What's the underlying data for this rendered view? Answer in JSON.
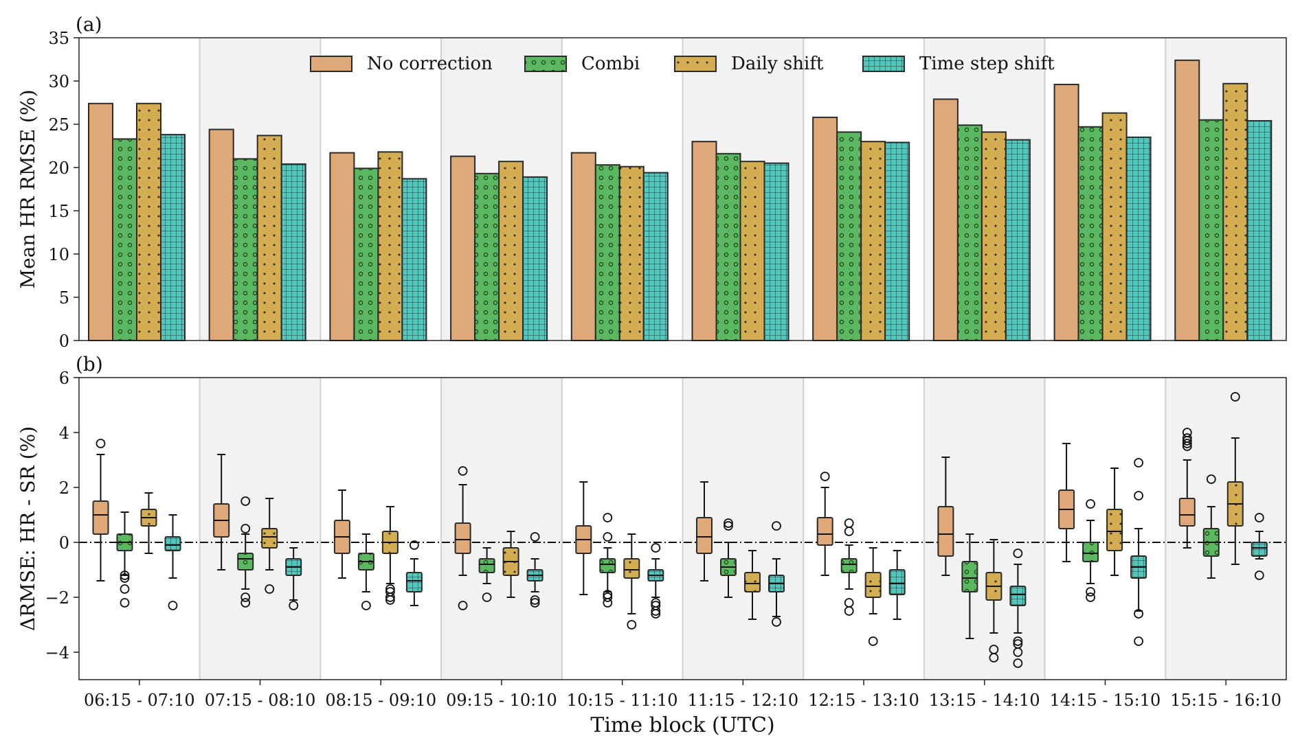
{
  "chart_data": [
    {
      "panel_label": "(a)",
      "type": "bar",
      "ylabel": "Mean HR RMSE (%)",
      "ylim": [
        0,
        35
      ],
      "yticks": [
        0,
        5,
        10,
        15,
        20,
        25,
        30,
        35
      ],
      "categories": [
        "06:15 - 07:10",
        "07:15 - 08:10",
        "08:15 - 09:10",
        "09:15 - 10:10",
        "10:15 - 11:10",
        "11:15 - 12:10",
        "12:15 - 13:10",
        "13:15 - 14:10",
        "14:15 - 15:10",
        "15:15 - 16:10"
      ],
      "legend_position": "top",
      "series": [
        {
          "name": "No correction",
          "color": "#dea878",
          "pattern": "none",
          "values": [
            27.4,
            24.4,
            21.7,
            21.3,
            21.7,
            23.0,
            25.8,
            27.9,
            29.6,
            32.4
          ]
        },
        {
          "name": "Combi",
          "color": "#5cb860",
          "pattern": "circles",
          "values": [
            23.3,
            21.0,
            19.9,
            19.3,
            20.3,
            21.6,
            24.1,
            24.9,
            24.7,
            25.5
          ]
        },
        {
          "name": "Daily shift",
          "color": "#d4ad52",
          "pattern": "dots",
          "values": [
            27.4,
            23.7,
            21.8,
            20.7,
            20.1,
            20.7,
            23.0,
            24.1,
            26.3,
            29.7
          ]
        },
        {
          "name": "Time step shift",
          "color": "#4ec9be",
          "pattern": "grid",
          "values": [
            23.8,
            20.4,
            18.7,
            18.9,
            19.4,
            20.5,
            22.9,
            23.2,
            23.5,
            25.4
          ]
        }
      ]
    },
    {
      "panel_label": "(b)",
      "type": "box",
      "ylabel": "ΔRMSE: HR - SR (%)",
      "xlabel": "Time block (UTC)",
      "ylim": [
        -5,
        6
      ],
      "yticks": [
        -4,
        -2,
        0,
        2,
        4,
        6
      ],
      "reference_line": 0,
      "categories": [
        "06:15 - 07:10",
        "07:15 - 08:10",
        "08:15 - 09:10",
        "09:15 - 10:10",
        "10:15 - 11:10",
        "11:15 - 12:10",
        "12:15 - 13:10",
        "13:15 - 14:10",
        "14:15 - 15:10",
        "15:15 - 16:10"
      ],
      "series": [
        {
          "name": "No correction",
          "color": "#dea878",
          "pattern": "none",
          "boxes": [
            {
              "lo": -1.4,
              "q1": 0.3,
              "med": 1.0,
              "q3": 1.5,
              "hi": 3.2,
              "out": [
                3.6
              ]
            },
            {
              "lo": -1.0,
              "q1": 0.2,
              "med": 0.8,
              "q3": 1.4,
              "hi": 3.2,
              "out": []
            },
            {
              "lo": -1.3,
              "q1": -0.4,
              "med": 0.2,
              "q3": 0.8,
              "hi": 1.9,
              "out": []
            },
            {
              "lo": -1.2,
              "q1": -0.4,
              "med": 0.1,
              "q3": 0.7,
              "hi": 2.1,
              "out": [
                2.6,
                -2.3
              ]
            },
            {
              "lo": -1.9,
              "q1": -0.4,
              "med": 0.1,
              "q3": 0.6,
              "hi": 2.2,
              "out": []
            },
            {
              "lo": -1.4,
              "q1": -0.4,
              "med": 0.2,
              "q3": 0.9,
              "hi": 2.2,
              "out": []
            },
            {
              "lo": -1.2,
              "q1": -0.1,
              "med": 0.3,
              "q3": 0.9,
              "hi": 2.0,
              "out": [
                2.4
              ]
            },
            {
              "lo": -1.2,
              "q1": -0.5,
              "med": 0.3,
              "q3": 1.3,
              "hi": 3.1,
              "out": []
            },
            {
              "lo": -0.7,
              "q1": 0.5,
              "med": 1.2,
              "q3": 1.9,
              "hi": 3.6,
              "out": []
            },
            {
              "lo": -0.2,
              "q1": 0.6,
              "med": 1.0,
              "q3": 1.6,
              "hi": 3.0,
              "out": [
                3.5,
                3.6,
                3.7,
                3.8,
                4.0
              ]
            }
          ]
        },
        {
          "name": "Combi",
          "color": "#5cb860",
          "pattern": "circles",
          "boxes": [
            {
              "lo": -1.2,
              "q1": -0.3,
              "med": 0.0,
              "q3": 0.3,
              "hi": 1.1,
              "out": [
                -1.2,
                -1.3,
                -1.7,
                -2.2
              ]
            },
            {
              "lo": -1.7,
              "q1": -1.0,
              "med": -0.6,
              "q3": -0.4,
              "hi": 0.3,
              "out": [
                0.5,
                1.5,
                -2.0,
                -2.2
              ]
            },
            {
              "lo": -1.8,
              "q1": -1.0,
              "med": -0.7,
              "q3": -0.4,
              "hi": 0.3,
              "out": [
                -2.3
              ]
            },
            {
              "lo": -1.5,
              "q1": -1.1,
              "med": -0.8,
              "q3": -0.6,
              "hi": -0.2,
              "out": [
                -2.0
              ]
            },
            {
              "lo": -1.8,
              "q1": -1.1,
              "med": -0.8,
              "q3": -0.6,
              "hi": -0.2,
              "out": [
                0.2,
                0.9,
                -1.9,
                -2.0,
                -2.2
              ]
            },
            {
              "lo": -2.0,
              "q1": -1.2,
              "med": -0.9,
              "q3": -0.6,
              "hi": 0.0,
              "out": [
                0.6,
                0.7
              ]
            },
            {
              "lo": -1.7,
              "q1": -1.1,
              "med": -0.8,
              "q3": -0.6,
              "hi": -0.1,
              "out": [
                0.4,
                0.7,
                -2.2,
                -2.5
              ]
            },
            {
              "lo": -3.5,
              "q1": -1.8,
              "med": -1.3,
              "q3": -0.7,
              "hi": 0.3,
              "out": []
            },
            {
              "lo": -1.5,
              "q1": -0.7,
              "med": -0.4,
              "q3": 0.0,
              "hi": 0.8,
              "out": [
                1.4,
                -1.8,
                -2.0
              ]
            },
            {
              "lo": -1.3,
              "q1": -0.5,
              "med": 0.0,
              "q3": 0.5,
              "hi": 1.3,
              "out": [
                2.3
              ]
            }
          ]
        },
        {
          "name": "Daily shift",
          "color": "#d4ad52",
          "pattern": "dots",
          "boxes": [
            {
              "lo": -0.4,
              "q1": 0.6,
              "med": 0.9,
              "q3": 1.2,
              "hi": 1.8,
              "out": []
            },
            {
              "lo": -1.0,
              "q1": -0.2,
              "med": 0.2,
              "q3": 0.5,
              "hi": 1.6,
              "out": [
                -1.7
              ]
            },
            {
              "lo": -1.5,
              "q1": -0.4,
              "med": 0.0,
              "q3": 0.4,
              "hi": 1.3,
              "out": [
                -1.7,
                -1.8,
                -2.0,
                -2.1
              ]
            },
            {
              "lo": -2.0,
              "q1": -1.2,
              "med": -0.7,
              "q3": -0.2,
              "hi": 0.4,
              "out": []
            },
            {
              "lo": -2.6,
              "q1": -1.3,
              "med": -1.0,
              "q3": -0.6,
              "hi": 0.3,
              "out": [
                -3.0
              ]
            },
            {
              "lo": -2.8,
              "q1": -1.8,
              "med": -1.5,
              "q3": -1.1,
              "hi": -0.3,
              "out": []
            },
            {
              "lo": -2.6,
              "q1": -2.0,
              "med": -1.6,
              "q3": -1.1,
              "hi": -0.2,
              "out": [
                -3.6
              ]
            },
            {
              "lo": -3.3,
              "q1": -2.1,
              "med": -1.6,
              "q3": -1.1,
              "hi": 0.1,
              "out": [
                -3.9,
                -4.2
              ]
            },
            {
              "lo": -1.2,
              "q1": -0.3,
              "med": 0.4,
              "q3": 1.2,
              "hi": 2.7,
              "out": []
            },
            {
              "lo": -0.8,
              "q1": 0.6,
              "med": 1.4,
              "q3": 2.2,
              "hi": 3.8,
              "out": [
                5.3
              ]
            }
          ]
        },
        {
          "name": "Time step shift",
          "color": "#4ec9be",
          "pattern": "grid",
          "boxes": [
            {
              "lo": -1.3,
              "q1": -0.3,
              "med": -0.1,
              "q3": 0.2,
              "hi": 1.0,
              "out": [
                -2.3
              ]
            },
            {
              "lo": -2.1,
              "q1": -1.2,
              "med": -0.9,
              "q3": -0.6,
              "hi": -0.2,
              "out": [
                -2.3
              ]
            },
            {
              "lo": -2.3,
              "q1": -1.8,
              "med": -1.4,
              "q3": -1.1,
              "hi": -0.6,
              "out": [
                -0.1
              ]
            },
            {
              "lo": -1.8,
              "q1": -1.4,
              "med": -1.2,
              "q3": -1.0,
              "hi": -0.6,
              "out": [
                0.2,
                -2.1,
                -2.2
              ]
            },
            {
              "lo": -2.0,
              "q1": -1.4,
              "med": -1.2,
              "q3": -1.0,
              "hi": -0.6,
              "out": [
                -0.2,
                -2.2,
                -2.3,
                -2.5,
                -2.6
              ]
            },
            {
              "lo": -2.7,
              "q1": -1.8,
              "med": -1.5,
              "q3": -1.2,
              "hi": -0.6,
              "out": [
                0.6,
                -2.9
              ]
            },
            {
              "lo": -2.8,
              "q1": -1.9,
              "med": -1.5,
              "q3": -1.0,
              "hi": -0.3,
              "out": []
            },
            {
              "lo": -3.3,
              "q1": -2.3,
              "med": -1.9,
              "q3": -1.6,
              "hi": -0.8,
              "out": [
                -0.4,
                -3.6,
                -3.7,
                -4.0,
                -4.4
              ]
            },
            {
              "lo": -2.5,
              "q1": -1.3,
              "med": -0.9,
              "q3": -0.5,
              "hi": 0.5,
              "out": [
                1.7,
                2.9,
                -2.6,
                -3.6
              ]
            },
            {
              "lo": -0.6,
              "q1": -0.5,
              "med": -0.2,
              "q3": 0.0,
              "hi": 0.4,
              "out": [
                0.9,
                -1.2
              ]
            }
          ]
        }
      ]
    }
  ]
}
